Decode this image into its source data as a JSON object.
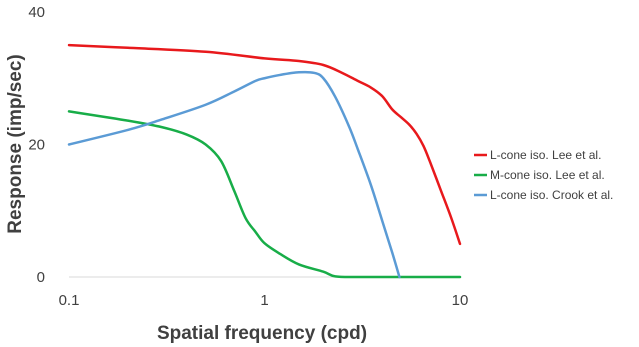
{
  "chart_data": {
    "type": "line",
    "title": "",
    "xlabel": "Spatial frequency (cpd)",
    "ylabel": "Response (imp/sec)",
    "x_scale": "log",
    "xlim": [
      0.1,
      10
    ],
    "ylim": [
      0,
      40
    ],
    "x_ticks": [
      0.1,
      1,
      10
    ],
    "x_tick_labels": [
      "0.1",
      "1",
      "10"
    ],
    "y_ticks": [
      0,
      20,
      40
    ],
    "y_tick_labels": [
      "0",
      "20",
      "40"
    ],
    "grid": false,
    "legend_position": "right",
    "series": [
      {
        "name": "L-cone iso. Lee et al.",
        "color": "#e8191c",
        "x": [
          0.1,
          0.2,
          0.5,
          1.0,
          1.5,
          2.0,
          2.5,
          3.0,
          3.5,
          4.0,
          4.5,
          5.0,
          5.5,
          6.0,
          6.5,
          7.0,
          8.0,
          9.0,
          10.0
        ],
        "y": [
          35.0,
          34.6,
          34.0,
          33.0,
          32.6,
          32.0,
          30.8,
          29.6,
          28.6,
          27.3,
          25.3,
          24.1,
          23.0,
          21.6,
          19.8,
          17.5,
          13.0,
          9.0,
          5.0
        ]
      },
      {
        "name": "M-cone iso. Lee et al.",
        "color": "#18ad48",
        "x": [
          0.1,
          0.2,
          0.3,
          0.4,
          0.5,
          0.6,
          0.7,
          0.8,
          0.9,
          1.0,
          1.2,
          1.5,
          2.0,
          2.3,
          3.0,
          5.0,
          10.0
        ],
        "y": [
          25.0,
          23.6,
          22.6,
          21.5,
          20.0,
          17.5,
          13.0,
          8.9,
          6.8,
          5.1,
          3.5,
          1.9,
          0.8,
          0.1,
          0.0,
          0.0,
          0.0
        ]
      },
      {
        "name": "L-cone iso. Crook et al.",
        "color": "#5b9bd5",
        "x": [
          0.1,
          0.2,
          0.3,
          0.5,
          0.7,
          0.9,
          1.0,
          1.2,
          1.5,
          1.8,
          2.0,
          2.3,
          2.7,
          3.0,
          3.5,
          4.0,
          4.5,
          4.9
        ],
        "y": [
          20.0,
          22.2,
          23.8,
          26.0,
          28.0,
          29.6,
          30.0,
          30.5,
          30.9,
          30.8,
          30.0,
          27.2,
          22.8,
          19.3,
          13.9,
          8.5,
          3.7,
          0.0
        ]
      }
    ]
  }
}
